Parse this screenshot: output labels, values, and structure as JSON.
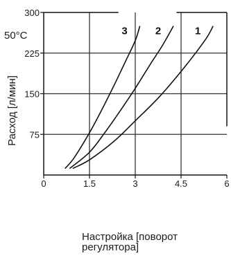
{
  "chart_data": {
    "type": "line",
    "title": "",
    "temperature_label": "50°C",
    "xlabel_line1": "Настройка [поворот",
    "xlabel_line2": "регулятора]",
    "ylabel": "Расход [л/мин]",
    "xlim": [
      0,
      6
    ],
    "ylim": [
      0,
      300
    ],
    "x_ticks": [
      "0",
      "1.5",
      "3",
      "4.5",
      "6"
    ],
    "y_ticks": [
      "75",
      "150",
      "225",
      "300"
    ],
    "grid": true,
    "series": [
      {
        "name": "1",
        "x": [
          0.95,
          1.5,
          2.3,
          3.0,
          3.8,
          4.6,
          5.3,
          5.55
        ],
        "y": [
          12,
          28,
          62,
          100,
          145,
          198,
          250,
          275
        ]
      },
      {
        "name": "2",
        "x": [
          0.85,
          1.5,
          2.0,
          2.5,
          3.0,
          3.5,
          3.9,
          4.25
        ],
        "y": [
          12,
          42,
          78,
          118,
          160,
          205,
          240,
          275
        ]
      },
      {
        "name": "3",
        "x": [
          0.7,
          1.0,
          1.5,
          1.9,
          2.3,
          2.7,
          3.0,
          3.15
        ],
        "y": [
          12,
          32,
          78,
          120,
          165,
          212,
          248,
          275
        ]
      }
    ]
  }
}
